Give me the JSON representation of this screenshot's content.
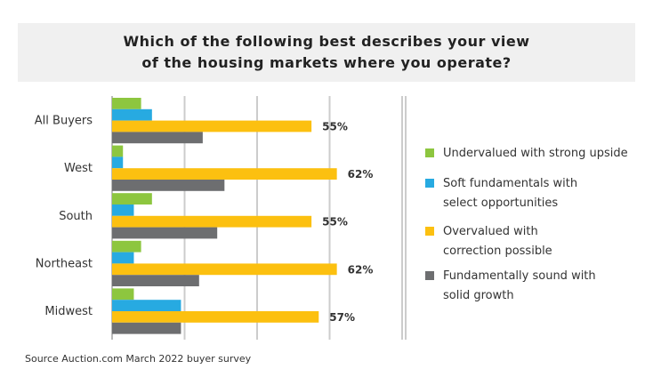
{
  "title_lines": [
    "Which of the following best describes your view",
    "of the housing markets where you operate?"
  ],
  "source": "Source Auction.com March 2022 buyer survey",
  "colors": {
    "green": "#8dc63f",
    "blue": "#27aae1",
    "yellow": "#fcc010",
    "gray": "#6d6e70",
    "grid": "#cccccc",
    "axis": "#bbbbbb"
  },
  "chart_data": {
    "type": "bar",
    "orientation": "horizontal",
    "title": "Which of the following best describes your view of the housing markets where you operate?",
    "categories": [
      "All Buyers",
      "West",
      "South",
      "Northeast",
      "Midwest"
    ],
    "series": [
      {
        "name": "Undervalued with strong upside",
        "color": "#8dc63f",
        "values": [
          8,
          3,
          11,
          8,
          6
        ]
      },
      {
        "name": "Soft fundamentals with select opportunities",
        "color": "#27aae1",
        "values": [
          11,
          3,
          6,
          6,
          19
        ]
      },
      {
        "name": "Overvalued with correction possible",
        "color": "#fcc010",
        "values": [
          55,
          62,
          55,
          62,
          57
        ]
      },
      {
        "name": "Fundamentally sound with solid growth",
        "color": "#6d6e70",
        "values": [
          25,
          31,
          29,
          24,
          19
        ]
      }
    ],
    "data_labels": [
      "55%",
      "62%",
      "55%",
      "62%",
      "57%"
    ],
    "xlim": [
      0,
      80
    ],
    "grid": true,
    "legend_position": "right"
  }
}
